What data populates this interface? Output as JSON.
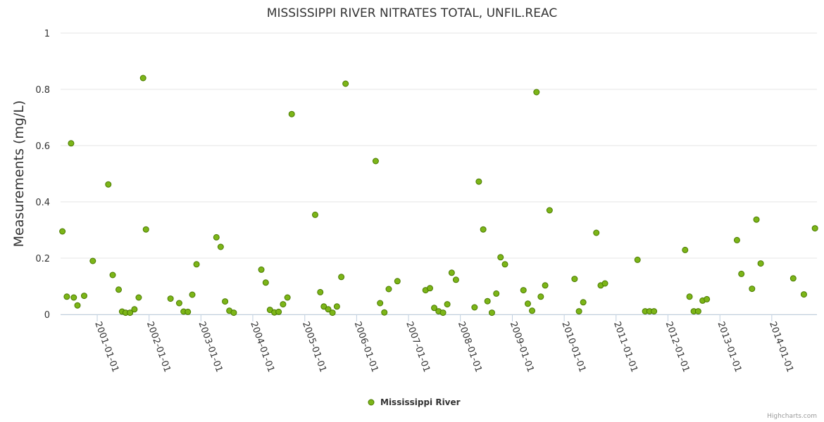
{
  "chart_data": {
    "type": "scatter",
    "title": "MISSISSIPPI RIVER NITRATES TOTAL, UNFIL.REAC",
    "ylabel": "Measurements (mg/L)",
    "xlabel": "",
    "ylim": [
      0,
      1
    ],
    "yticks": [
      "0",
      "0.2",
      "0.4",
      "0.6",
      "0.8",
      "1"
    ],
    "xlim": [
      "2000-04-18",
      "2014-11-15"
    ],
    "xticks": [
      "2001-01-01",
      "2002-01-01",
      "2003-01-01",
      "2004-01-01",
      "2005-01-01",
      "2006-01-01",
      "2007-01-01",
      "2008-01-01",
      "2009-01-01",
      "2010-01-01",
      "2011-01-01",
      "2012-01-01",
      "2013-01-01",
      "2014-01-01"
    ],
    "grid": true,
    "legend_position": "bottom-center",
    "point_color": "#7cb518",
    "point_outline": "#4a7a00",
    "series": [
      {
        "name": "Mississippi River",
        "points": [
          [
            "2000-05-01",
            0.295
          ],
          [
            "2000-06-01",
            0.063
          ],
          [
            "2000-07-01",
            0.608
          ],
          [
            "2000-07-20",
            0.06
          ],
          [
            "2000-08-15",
            0.032
          ],
          [
            "2000-10-01",
            0.066
          ],
          [
            "2000-12-01",
            0.19
          ],
          [
            "2001-03-20",
            0.462
          ],
          [
            "2001-04-20",
            0.14
          ],
          [
            "2001-06-01",
            0.088
          ],
          [
            "2001-06-25",
            0.01
          ],
          [
            "2001-07-20",
            0.006
          ],
          [
            "2001-08-20",
            0.006
          ],
          [
            "2001-09-20",
            0.018
          ],
          [
            "2001-10-20",
            0.06
          ],
          [
            "2001-11-20",
            0.84
          ],
          [
            "2001-12-10",
            0.302
          ],
          [
            "2002-06-01",
            0.056
          ],
          [
            "2002-08-01",
            0.04
          ],
          [
            "2002-09-01",
            0.01
          ],
          [
            "2002-10-01",
            0.009
          ],
          [
            "2002-11-01",
            0.07
          ],
          [
            "2002-12-01",
            0.178
          ],
          [
            "2003-04-20",
            0.274
          ],
          [
            "2003-05-20",
            0.24
          ],
          [
            "2003-06-20",
            0.046
          ],
          [
            "2003-07-20",
            0.013
          ],
          [
            "2003-08-20",
            0.006
          ],
          [
            "2004-03-01",
            0.159
          ],
          [
            "2004-04-01",
            0.113
          ],
          [
            "2004-05-01",
            0.016
          ],
          [
            "2004-06-01",
            0.007
          ],
          [
            "2004-07-01",
            0.009
          ],
          [
            "2004-08-01",
            0.036
          ],
          [
            "2004-09-01",
            0.06
          ],
          [
            "2004-10-01",
            0.712
          ],
          [
            "2005-03-15",
            0.354
          ],
          [
            "2005-04-20",
            0.079
          ],
          [
            "2005-05-15",
            0.028
          ],
          [
            "2005-06-15",
            0.018
          ],
          [
            "2005-07-15",
            0.006
          ],
          [
            "2005-08-15",
            0.028
          ],
          [
            "2005-09-15",
            0.133
          ],
          [
            "2005-10-15",
            0.82
          ],
          [
            "2006-05-15",
            0.545
          ],
          [
            "2006-06-15",
            0.04
          ],
          [
            "2006-07-15",
            0.007
          ],
          [
            "2006-08-15",
            0.09
          ],
          [
            "2006-10-15",
            0.118
          ],
          [
            "2007-05-01",
            0.086
          ],
          [
            "2007-06-01",
            0.093
          ],
          [
            "2007-07-01",
            0.023
          ],
          [
            "2007-08-01",
            0.011
          ],
          [
            "2007-09-01",
            0.006
          ],
          [
            "2007-10-01",
            0.036
          ],
          [
            "2007-11-01",
            0.148
          ],
          [
            "2007-12-01",
            0.123
          ],
          [
            "2008-04-10",
            0.025
          ],
          [
            "2008-05-10",
            0.472
          ],
          [
            "2008-06-10",
            0.302
          ],
          [
            "2008-07-10",
            0.047
          ],
          [
            "2008-08-10",
            0.006
          ],
          [
            "2008-09-10",
            0.074
          ],
          [
            "2008-10-10",
            0.203
          ],
          [
            "2008-11-10",
            0.178
          ],
          [
            "2009-03-20",
            0.086
          ],
          [
            "2009-04-20",
            0.038
          ],
          [
            "2009-05-20",
            0.013
          ],
          [
            "2009-06-20",
            0.79
          ],
          [
            "2009-07-20",
            0.063
          ],
          [
            "2009-08-20",
            0.103
          ],
          [
            "2009-09-20",
            0.37
          ],
          [
            "2010-03-15",
            0.126
          ],
          [
            "2010-04-15",
            0.011
          ],
          [
            "2010-05-15",
            0.043
          ],
          [
            "2010-08-15",
            0.29
          ],
          [
            "2010-09-15",
            0.103
          ],
          [
            "2010-10-15",
            0.11
          ],
          [
            "2011-06-01",
            0.194
          ],
          [
            "2011-07-25",
            0.011
          ],
          [
            "2011-08-25",
            0.011
          ],
          [
            "2011-09-25",
            0.011
          ],
          [
            "2012-05-01",
            0.229
          ],
          [
            "2012-06-01",
            0.063
          ],
          [
            "2012-07-01",
            0.011
          ],
          [
            "2012-08-01",
            0.011
          ],
          [
            "2012-09-01",
            0.049
          ],
          [
            "2012-10-01",
            0.054
          ],
          [
            "2013-05-01",
            0.264
          ],
          [
            "2013-06-01",
            0.144
          ],
          [
            "2013-08-15",
            0.091
          ],
          [
            "2013-09-15",
            0.337
          ],
          [
            "2013-10-15",
            0.181
          ],
          [
            "2014-06-01",
            0.128
          ],
          [
            "2014-08-15",
            0.071
          ],
          [
            "2014-11-01",
            0.306
          ]
        ]
      }
    ]
  },
  "credits": "Highcharts.com"
}
